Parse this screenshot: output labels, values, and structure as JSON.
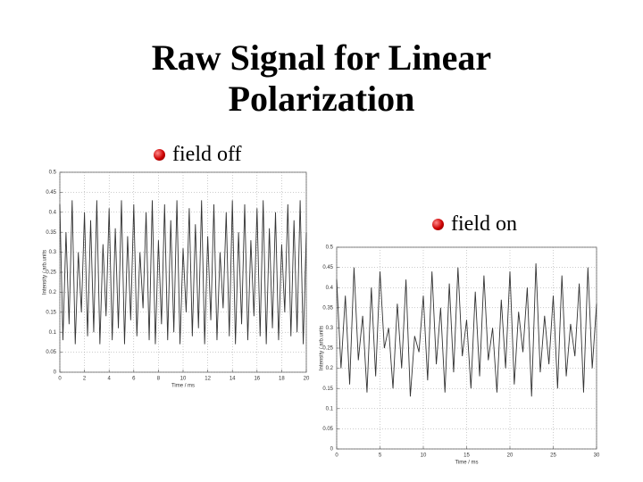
{
  "slide": {
    "title": "Raw Signal for Linear Polarization",
    "bullets": [
      "field off",
      "field on"
    ]
  },
  "chart_data": [
    {
      "type": "line",
      "xlabel": "Time / ms",
      "ylabel": "Intensity / arb.units",
      "color": "#333",
      "grid": true,
      "xlim": [
        0,
        20
      ],
      "ylim": [
        0,
        0.5
      ],
      "xticks": [
        0,
        2,
        4,
        6,
        8,
        10,
        12,
        14,
        16,
        18,
        20
      ],
      "yticks": [
        0,
        0.05,
        0.1,
        0.15,
        0.2,
        0.25,
        0.3,
        0.35,
        0.4,
        0.45,
        0.5
      ],
      "x": [
        0,
        0.25,
        0.5,
        0.75,
        1,
        1.25,
        1.5,
        1.75,
        2,
        2.25,
        2.5,
        2.75,
        3,
        3.25,
        3.5,
        3.75,
        4,
        4.25,
        4.5,
        4.75,
        5,
        5.25,
        5.5,
        5.75,
        6,
        6.25,
        6.5,
        6.75,
        7,
        7.25,
        7.5,
        7.75,
        8,
        8.25,
        8.5,
        8.75,
        9,
        9.25,
        9.5,
        9.75,
        10,
        10.25,
        10.5,
        10.75,
        11,
        11.25,
        11.5,
        11.75,
        12,
        12.25,
        12.5,
        12.75,
        13,
        13.25,
        13.5,
        13.75,
        14,
        14.25,
        14.5,
        14.75,
        15,
        15.25,
        15.5,
        15.75,
        16,
        16.25,
        16.5,
        16.75,
        17,
        17.25,
        17.5,
        17.75,
        18,
        18.25,
        18.5,
        18.75,
        19,
        19.25,
        19.5,
        19.75,
        20
      ],
      "values": [
        0.42,
        0.08,
        0.35,
        0.12,
        0.43,
        0.07,
        0.3,
        0.15,
        0.4,
        0.09,
        0.38,
        0.1,
        0.43,
        0.07,
        0.32,
        0.14,
        0.41,
        0.08,
        0.36,
        0.11,
        0.43,
        0.07,
        0.34,
        0.13,
        0.42,
        0.09,
        0.3,
        0.16,
        0.4,
        0.08,
        0.43,
        0.07,
        0.33,
        0.12,
        0.42,
        0.08,
        0.38,
        0.1,
        0.43,
        0.07,
        0.31,
        0.15,
        0.41,
        0.09,
        0.37,
        0.11,
        0.43,
        0.07,
        0.34,
        0.13,
        0.42,
        0.08,
        0.3,
        0.16,
        0.4,
        0.09,
        0.43,
        0.07,
        0.35,
        0.12,
        0.42,
        0.08,
        0.33,
        0.14,
        0.41,
        0.09,
        0.43,
        0.07,
        0.36,
        0.11,
        0.4,
        0.08,
        0.32,
        0.15,
        0.42,
        0.09,
        0.38,
        0.1,
        0.43,
        0.07,
        0.35
      ]
    },
    {
      "type": "line",
      "xlabel": "Time / ms",
      "ylabel": "Intensity / arb.units",
      "color": "#333",
      "grid": true,
      "xlim": [
        0,
        30
      ],
      "ylim": [
        0,
        0.5
      ],
      "xticks": [
        0,
        5,
        10,
        15,
        20,
        25,
        30
      ],
      "yticks": [
        0,
        0.05,
        0.1,
        0.15,
        0.2,
        0.25,
        0.3,
        0.35,
        0.4,
        0.45,
        0.5
      ],
      "x": [
        0,
        0.5,
        1,
        1.5,
        2,
        2.5,
        3,
        3.5,
        4,
        4.5,
        5,
        5.5,
        6,
        6.5,
        7,
        7.5,
        8,
        8.5,
        9,
        9.5,
        10,
        10.5,
        11,
        11.5,
        12,
        12.5,
        13,
        13.5,
        14,
        14.5,
        15,
        15.5,
        16,
        16.5,
        17,
        17.5,
        18,
        18.5,
        19,
        19.5,
        20,
        20.5,
        21,
        21.5,
        22,
        22.5,
        23,
        23.5,
        24,
        24.5,
        25,
        25.5,
        26,
        26.5,
        27,
        27.5,
        28,
        28.5,
        29,
        29.5,
        30
      ],
      "values": [
        0.42,
        0.2,
        0.38,
        0.16,
        0.45,
        0.22,
        0.33,
        0.14,
        0.4,
        0.18,
        0.44,
        0.25,
        0.3,
        0.15,
        0.36,
        0.2,
        0.42,
        0.13,
        0.28,
        0.24,
        0.38,
        0.17,
        0.44,
        0.21,
        0.35,
        0.14,
        0.41,
        0.19,
        0.45,
        0.23,
        0.32,
        0.15,
        0.39,
        0.18,
        0.43,
        0.22,
        0.3,
        0.14,
        0.37,
        0.2,
        0.44,
        0.16,
        0.34,
        0.24,
        0.4,
        0.13,
        0.46,
        0.19,
        0.33,
        0.21,
        0.38,
        0.15,
        0.43,
        0.18,
        0.31,
        0.23,
        0.41,
        0.14,
        0.45,
        0.2,
        0.36
      ]
    }
  ]
}
